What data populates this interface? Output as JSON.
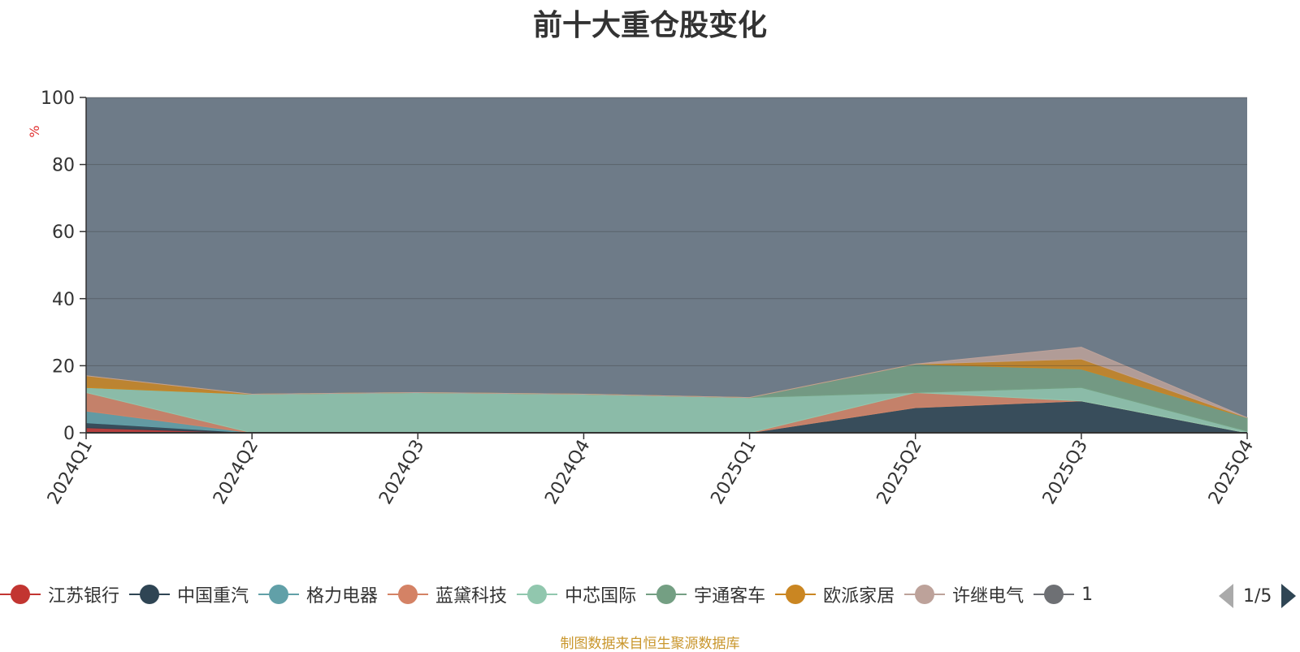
{
  "chart_data": {
    "type": "area",
    "title": "前十大重仓股变化",
    "ylabel": "%",
    "xlabel": "",
    "ylim": [
      0,
      100
    ],
    "yticks": [
      0,
      20,
      40,
      60,
      80,
      100
    ],
    "grid": true,
    "stacking": "percent",
    "categories": [
      "2024Q1",
      "2024Q2",
      "2024Q3",
      "2024Q4",
      "2025Q1",
      "2025Q2",
      "2025Q3",
      "2025Q4"
    ],
    "background_color": "#6e7b88",
    "series": [
      {
        "name": "江苏银行",
        "color": "#c23531",
        "values": [
          1.5,
          0,
          0,
          0,
          0,
          0,
          0,
          0
        ]
      },
      {
        "name": "中国重汽",
        "color": "#2f4554",
        "values": [
          1.5,
          0,
          0,
          0,
          0,
          7.5,
          9.5,
          0
        ]
      },
      {
        "name": "格力电器",
        "color": "#61a0a8",
        "values": [
          3.5,
          0,
          0,
          0,
          0,
          0,
          0,
          0
        ]
      },
      {
        "name": "蓝黛科技",
        "color": "#d48265",
        "values": [
          5.5,
          0,
          0,
          0,
          0,
          4.5,
          0,
          0
        ]
      },
      {
        "name": "中芯国际",
        "color": "#91c7ae",
        "values": [
          1.5,
          11.5,
          12,
          11.5,
          10.5,
          0,
          4,
          0.5
        ]
      },
      {
        "name": "宇通客车",
        "color": "#749f83",
        "values": [
          0,
          0,
          0,
          0,
          0,
          8.5,
          5.5,
          4
        ]
      },
      {
        "name": "欧派家居",
        "color": "#ca8622",
        "values": [
          3.5,
          0,
          0,
          0,
          0,
          0,
          3,
          0
        ]
      },
      {
        "name": "许继电气",
        "color": "#bda29a",
        "values": [
          0,
          0,
          0,
          0,
          0,
          0,
          3.5,
          0
        ]
      }
    ],
    "legend_hidden_items": [
      {
        "name": "",
        "color": "#6e7074"
      }
    ],
    "legend_position": "bottom",
    "legend_page": "1/5"
  },
  "legend": {
    "items": [
      "江苏银行",
      "中国重汽",
      "格力电器",
      "蓝黛科技",
      "中芯国际",
      "宇通客车",
      "欧派家居",
      "许继电气",
      "1"
    ],
    "page": "1/5"
  },
  "source_note": "制图数据来自恒生聚源数据库"
}
